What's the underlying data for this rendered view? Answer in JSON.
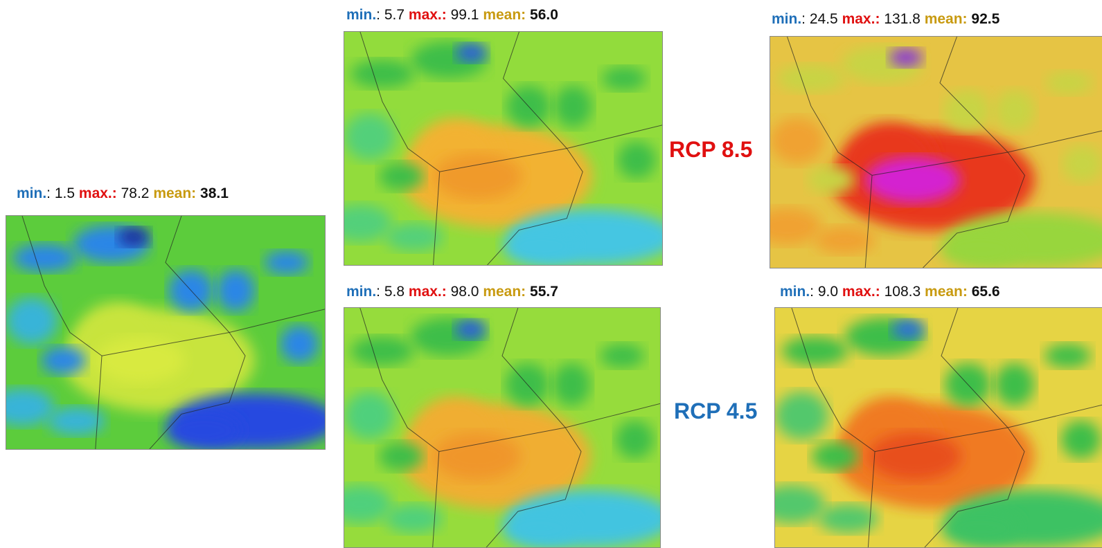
{
  "labels": {
    "min": "min.",
    "colon": ":",
    "max": "max.:",
    "mean": "mean:"
  },
  "scenarios": {
    "rcp85": "RCP 8.5",
    "rcp45": "RCP 4.5"
  },
  "panels": {
    "baseline": {
      "min": "1.5",
      "max": "78.2",
      "mean": "38.1"
    },
    "rcp85_mid": {
      "min": "5.7",
      "max": "99.1",
      "mean": "56.0"
    },
    "rcp85_end": {
      "min": "24.5",
      "max": "131.8",
      "mean": "92.5"
    },
    "rcp45_mid": {
      "min": "5.8",
      "max": "98.0",
      "mean": "55.7"
    },
    "rcp45_end": {
      "min": "9.0",
      "max": "108.3",
      "mean": "65.6"
    }
  }
}
